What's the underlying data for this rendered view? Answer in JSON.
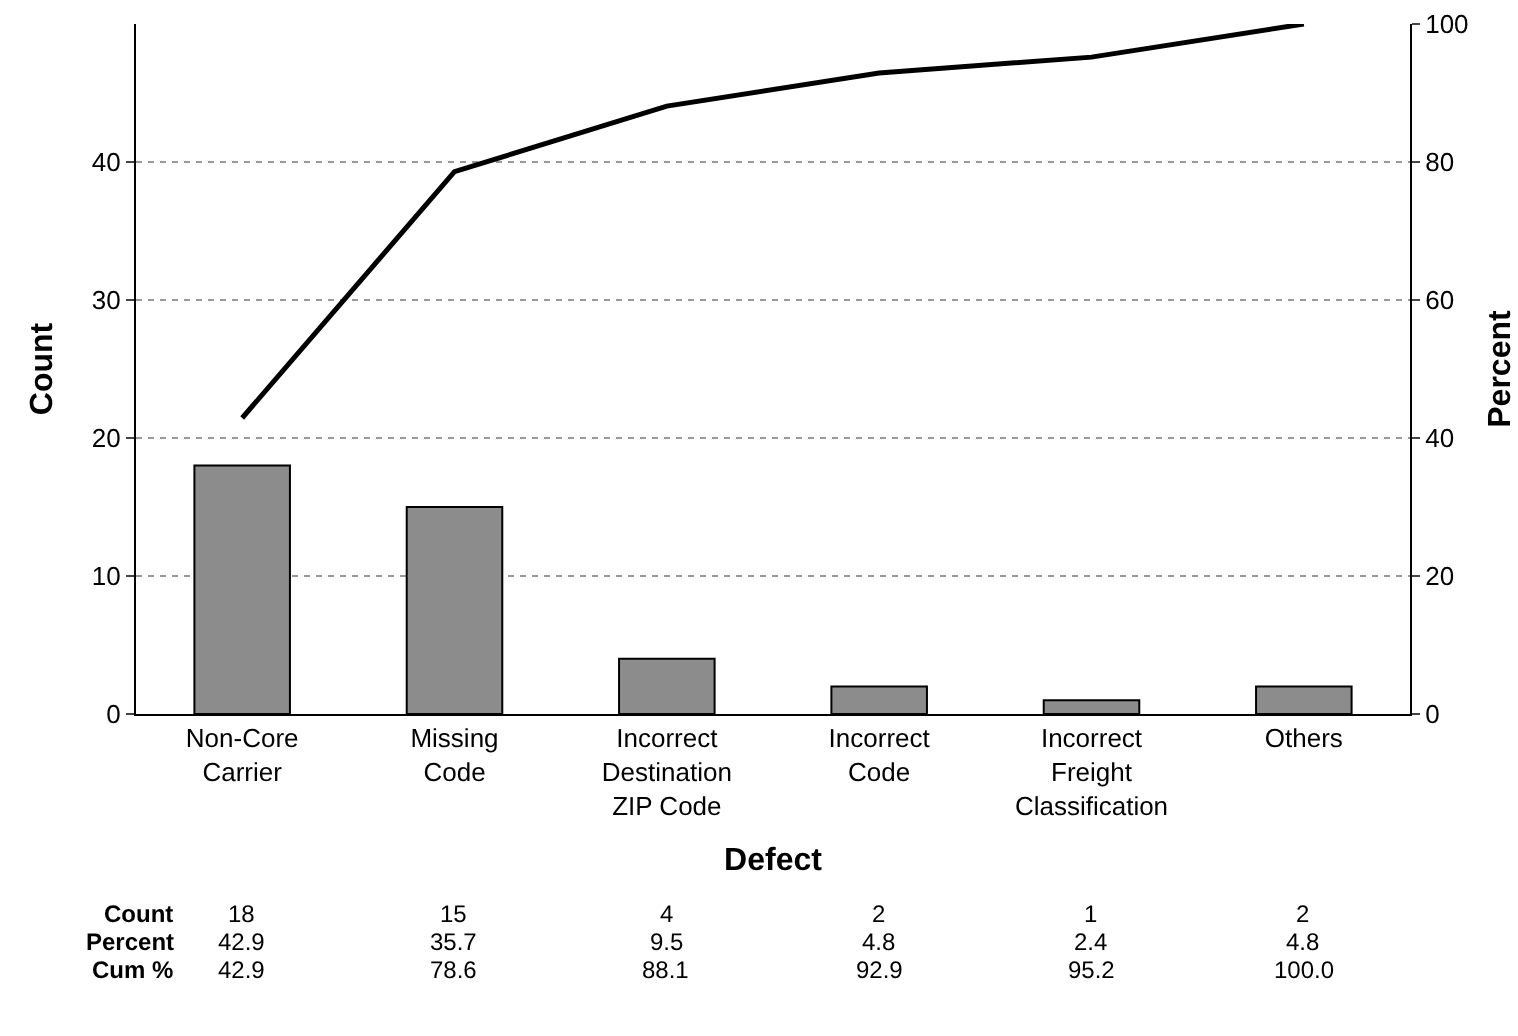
{
  "chart_data": {
    "type": "bar",
    "xlabel": "Defect",
    "ylabel": "Count",
    "y2label": "Percent",
    "categories": [
      "Non-Core Carrier",
      "Missing Code",
      "Incorrect Destination ZIP Code",
      "Incorrect Code",
      "Incorrect Freight Classification",
      "Others"
    ],
    "series": [
      {
        "color": "#8c8c8c",
        "values": [
          18,
          15,
          4,
          2,
          1,
          2
        ],
        "value_labels": [
          "18",
          "15",
          "4",
          "2",
          "1",
          "2"
        ]
      },
      {
        "type": "line",
        "axis": "y2",
        "color": "#000000",
        "values": [
          42.9,
          78.6,
          88.1,
          92.9,
          95.2,
          100.0
        ],
        "value_labels": [
          "42.9",
          "78.6",
          "88.1",
          "92.9",
          "95.2",
          "100.0"
        ]
      }
    ],
    "ylim": [
      0,
      50
    ],
    "yticks": [
      0,
      10,
      20,
      30,
      40
    ],
    "y2lim": [
      0,
      100
    ],
    "y2ticks": [
      0,
      20,
      40,
      60,
      80,
      100
    ],
    "grid": "y",
    "legend": false,
    "marker": "none",
    "line_style": "solid",
    "annotations": [
      "Count",
      "Percent",
      "42.9",
      "35.7",
      "9.5",
      "4.8",
      "2.4",
      "4.8",
      "Cum %"
    ]
  }
}
